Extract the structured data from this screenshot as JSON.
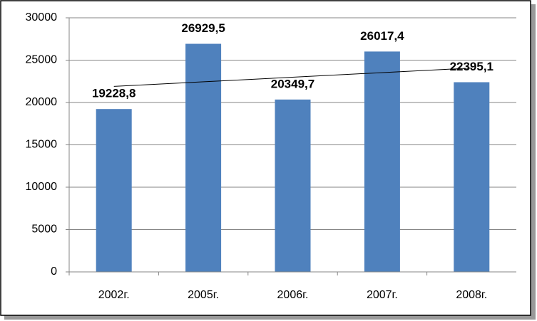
{
  "chart_data": {
    "type": "bar",
    "categories": [
      "2002г.",
      "2005г.",
      "2006г.",
      "2007г.",
      "2008г."
    ],
    "values": [
      19228.8,
      26929.5,
      20349.7,
      26017.4,
      22395.1
    ],
    "value_labels": [
      "19228,8",
      "26929,5",
      "20349,7",
      "26017,4",
      "22395,1"
    ],
    "color": "#4f81bd",
    "ylim": [
      0,
      30000
    ],
    "yticks": [
      0,
      5000,
      10000,
      15000,
      20000,
      25000,
      30000
    ],
    "grid": true,
    "trendline": "linear"
  }
}
